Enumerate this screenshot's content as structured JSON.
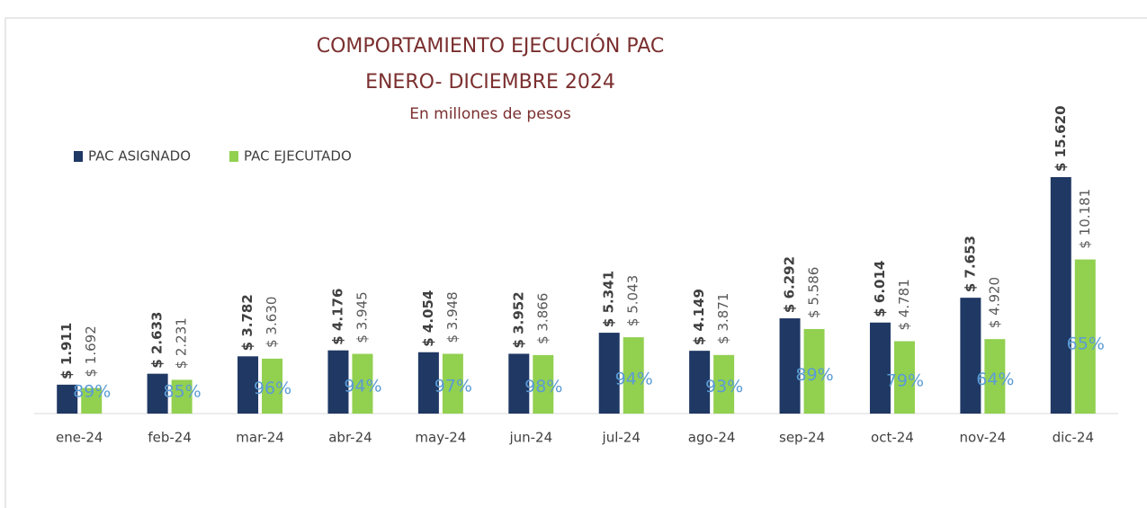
{
  "chart_data": {
    "type": "bar",
    "title": [
      "COMPORTAMIENTO EJECUCIÓN PAC",
      "ENERO- DICIEMBRE 2024"
    ],
    "subtitle": "En millones de pesos",
    "categories": [
      "ene-24",
      "feb-24",
      "mar-24",
      "abr-24",
      "may-24",
      "jun-24",
      "jul-24",
      "ago-24",
      "sep-24",
      "oct-24",
      "nov-24",
      "dic-24"
    ],
    "series": [
      {
        "name": "PAC ASIGNADO",
        "color": "#1f3864",
        "values": [
          1911,
          2633,
          3782,
          4176,
          4054,
          3952,
          5341,
          4149,
          6292,
          6014,
          7653,
          15620
        ],
        "value_labels": [
          "$ 1.911",
          "$ 2.633",
          "$ 3.782",
          "$ 4.176",
          "$ 4.054",
          "$ 3.952",
          "$ 5.341",
          "$ 4.149",
          "$ 6.292",
          "$ 6.014",
          "$ 7.653",
          "$ 15.620"
        ]
      },
      {
        "name": "PAC EJECUTADO",
        "color": "#92d050",
        "values": [
          1692,
          2231,
          3630,
          3945,
          3948,
          3866,
          5043,
          3871,
          5586,
          4781,
          4920,
          10181
        ],
        "value_labels": [
          "$ 1.692",
          "$ 2.231",
          "$ 3.630",
          "$ 3.945",
          "$ 3.948",
          "$ 3.866",
          "$ 5.043",
          "$ 3.871",
          "$ 5.586",
          "$ 4.781",
          "$ 4.920",
          "$ 10.181"
        ]
      }
    ],
    "execution_pct": {
      "values": [
        89,
        85,
        96,
        94,
        97,
        98,
        94,
        93,
        89,
        79,
        64,
        65
      ],
      "value_labels": [
        "89%",
        "85%",
        "96%",
        "94%",
        "97%",
        "98%",
        "94%",
        "93%",
        "89%",
        "79%",
        "64%",
        "65%"
      ]
    },
    "legend": "top-left"
  }
}
